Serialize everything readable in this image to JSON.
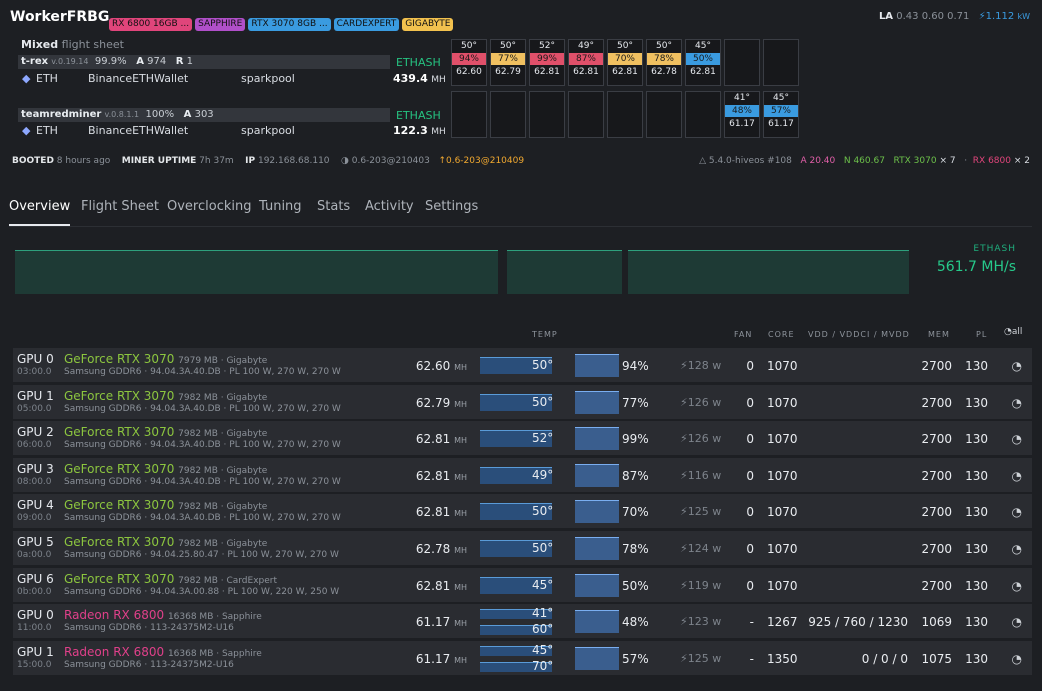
{
  "header": {
    "title": "WorkerFRBG",
    "tags": [
      {
        "label": "RX 6800 16GB ...",
        "color": "#e0457b"
      },
      {
        "label": "SAPPHIRE",
        "color": "#b04fc9"
      },
      {
        "label": "RTX 3070 8GB ...",
        "color": "#3a9be0"
      },
      {
        "label": "CARDEXPERT",
        "color": "#3a9be0"
      },
      {
        "label": "GIGABYTE",
        "color": "#f2c14e"
      }
    ],
    "la_label": "LA",
    "la_values": "0.43 0.60 0.71",
    "power": "1.112",
    "power_unit": "kW"
  },
  "flight": {
    "title": "Mixed",
    "subtitle": "flight sheet"
  },
  "miners": [
    {
      "name": "t-rex",
      "version": "v.0.19.14",
      "share": "99.9%",
      "a_label": "A",
      "accepted": "974",
      "r_label": "R",
      "rejected": "1",
      "coin": "ETH",
      "wallet": "BinanceETHWallet",
      "pool": "sparkpool",
      "hashrate": "439.4",
      "unit": "MH",
      "algo": "ETHASH"
    },
    {
      "name": "teamredminer",
      "version": "v.0.8.1.1",
      "share": "100%",
      "a_label": "A",
      "accepted": "303",
      "coin": "ETH",
      "wallet": "BinanceETHWallet",
      "pool": "sparkpool",
      "hashrate": "122.3",
      "unit": "MH",
      "algo": "ETHASH"
    }
  ],
  "gpu_cells_nvidia": [
    {
      "temp": "50°",
      "fan": "94%",
      "fan_color": "#e0506a",
      "hash": "62.60"
    },
    {
      "temp": "50°",
      "fan": "77%",
      "fan_color": "#f0c060",
      "hash": "62.79"
    },
    {
      "temp": "52°",
      "fan": "99%",
      "fan_color": "#e0506a",
      "hash": "62.81"
    },
    {
      "temp": "49°",
      "fan": "87%",
      "fan_color": "#e0506a",
      "hash": "62.81"
    },
    {
      "temp": "50°",
      "fan": "70%",
      "fan_color": "#f0c060",
      "hash": "62.81"
    },
    {
      "temp": "50°",
      "fan": "78%",
      "fan_color": "#f0c060",
      "hash": "62.78"
    },
    {
      "temp": "45°",
      "fan": "50%",
      "fan_color": "#3a9be0",
      "hash": "62.81"
    }
  ],
  "gpu_cells_amd": [
    {
      "temp": "41°",
      "fan": "48%",
      "fan_color": "#3a9be0",
      "hash": "61.17"
    },
    {
      "temp": "45°",
      "fan": "57%",
      "fan_color": "#3a9be0",
      "hash": "61.17"
    }
  ],
  "info": {
    "booted_label": "BOOTED",
    "booted": "8 hours ago",
    "uptime_label": "MINER UPTIME",
    "uptime": "7h 37m",
    "ip_label": "IP",
    "ip": "192.168.68.110",
    "ver": "0.6-203@210403",
    "ver_new": "0.6-203@210409",
    "kernel": "5.4.0-hiveos #108",
    "a_ver": "A 20.40",
    "n_ver": "N 460.67",
    "rtx": "RTX 3070",
    "rtx_count": "× 7",
    "rx": "RX 6800",
    "rx_count": "× 2"
  },
  "tabs": [
    "Overview",
    "Flight Sheet",
    "Overclocking",
    "Tuning",
    "Stats",
    "Activity",
    "Settings"
  ],
  "graph": {
    "algo": "ETHASH",
    "rate": "561.7 MH/s"
  },
  "cols": {
    "temp": "TEMP",
    "fan": "FAN",
    "core": "CORE",
    "vdd": "VDD / VDDCI / MVDD",
    "mem": "MEM",
    "pl": "PL",
    "all": "all"
  },
  "rows": [
    {
      "id": "GPU 0",
      "time": "03:00.0",
      "name": "GeForce RTX 3070",
      "vendor": "nv",
      "mem": "7979 MB · Gigabyte",
      "sub": "Samsung GDDR6 · 94.04.3A.40.DB · PL 100 W, 270 W, 270 W",
      "hash": "62.60",
      "unit": "MH",
      "temp": "50°",
      "fan": "94%",
      "power": "128 w",
      "fanset": "0",
      "core": "1070",
      "vdd": "",
      "memclk": "2700",
      "pl": "130"
    },
    {
      "id": "GPU 1",
      "time": "05:00.0",
      "name": "GeForce RTX 3070",
      "vendor": "nv",
      "mem": "7982 MB · Gigabyte",
      "sub": "Samsung GDDR6 · 94.04.3A.40.DB · PL 100 W, 270 W, 270 W",
      "hash": "62.79",
      "unit": "MH",
      "temp": "50°",
      "fan": "77%",
      "power": "126 w",
      "fanset": "0",
      "core": "1070",
      "vdd": "",
      "memclk": "2700",
      "pl": "130"
    },
    {
      "id": "GPU 2",
      "time": "06:00.0",
      "name": "GeForce RTX 3070",
      "vendor": "nv",
      "mem": "7982 MB · Gigabyte",
      "sub": "Samsung GDDR6 · 94.04.3A.40.DB · PL 100 W, 270 W, 270 W",
      "hash": "62.81",
      "unit": "MH",
      "temp": "52°",
      "fan": "99%",
      "power": "126 w",
      "fanset": "0",
      "core": "1070",
      "vdd": "",
      "memclk": "2700",
      "pl": "130"
    },
    {
      "id": "GPU 3",
      "time": "08:00.0",
      "name": "GeForce RTX 3070",
      "vendor": "nv",
      "mem": "7982 MB · Gigabyte",
      "sub": "Samsung GDDR6 · 94.04.3A.40.DB · PL 100 W, 270 W, 270 W",
      "hash": "62.81",
      "unit": "MH",
      "temp": "49°",
      "fan": "87%",
      "power": "116 w",
      "fanset": "0",
      "core": "1070",
      "vdd": "",
      "memclk": "2700",
      "pl": "130"
    },
    {
      "id": "GPU 4",
      "time": "09:00.0",
      "name": "GeForce RTX 3070",
      "vendor": "nv",
      "mem": "7982 MB · Gigabyte",
      "sub": "Samsung GDDR6 · 94.04.3A.40.DB · PL 100 W, 270 W, 270 W",
      "hash": "62.81",
      "unit": "MH",
      "temp": "50°",
      "fan": "70%",
      "power": "125 w",
      "fanset": "0",
      "core": "1070",
      "vdd": "",
      "memclk": "2700",
      "pl": "130"
    },
    {
      "id": "GPU 5",
      "time": "0a:00.0",
      "name": "GeForce RTX 3070",
      "vendor": "nv",
      "mem": "7982 MB · Gigabyte",
      "sub": "Samsung GDDR6 · 94.04.25.80.47 · PL 100 W, 270 W, 270 W",
      "hash": "62.78",
      "unit": "MH",
      "temp": "50°",
      "fan": "78%",
      "power": "124 w",
      "fanset": "0",
      "core": "1070",
      "vdd": "",
      "memclk": "2700",
      "pl": "130"
    },
    {
      "id": "GPU 6",
      "time": "0b:00.0",
      "name": "GeForce RTX 3070",
      "vendor": "nv",
      "mem": "7982 MB · CardExpert",
      "sub": "Samsung GDDR6 · 94.04.3A.00.88 · PL 100 W, 220 W, 250 W",
      "hash": "62.81",
      "unit": "MH",
      "temp": "45°",
      "fan": "50%",
      "power": "119 w",
      "fanset": "0",
      "core": "1070",
      "vdd": "",
      "memclk": "2700",
      "pl": "130"
    },
    {
      "id": "GPU 0",
      "time": "11:00.0",
      "name": "Radeon RX 6800",
      "vendor": "amd",
      "mem": "16368 MB · Sapphire",
      "sub": "Samsung GDDR6 · 113-24375M2-U16",
      "hash": "61.17",
      "unit": "MH",
      "temp": "41°",
      "temp2": "60°",
      "fan": "48%",
      "power": "123 w",
      "fanset": "-",
      "core": "1267",
      "vdd": "925 / 760 / 1230",
      "memclk": "1069",
      "pl": "130"
    },
    {
      "id": "GPU 1",
      "time": "15:00.0",
      "name": "Radeon RX 6800",
      "vendor": "amd",
      "mem": "16368 MB · Sapphire",
      "sub": "Samsung GDDR6 · 113-24375M2-U16",
      "hash": "61.17",
      "unit": "MH",
      "temp": "45°",
      "temp2": "70°",
      "fan": "57%",
      "power": "125 w",
      "fanset": "-",
      "core": "1350",
      "vdd": "0 / 0 / 0",
      "memclk": "1075",
      "pl": "130"
    }
  ]
}
